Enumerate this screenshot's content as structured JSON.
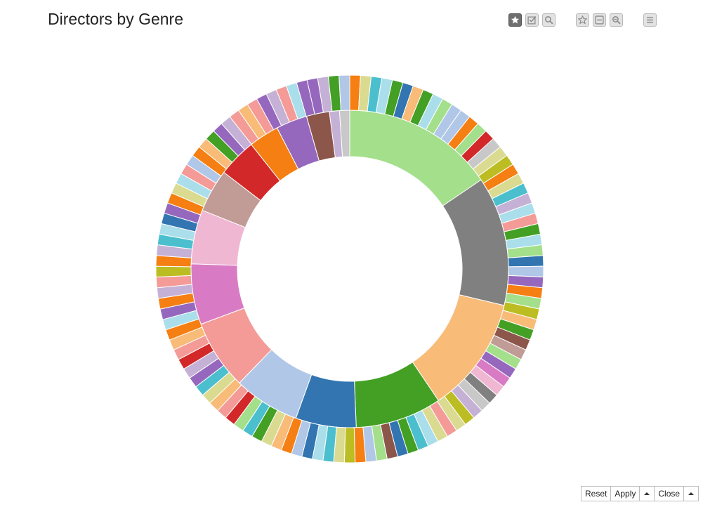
{
  "title": "Directors by Genre",
  "toolbar": [
    {
      "icon": "star-icon",
      "active": true
    },
    {
      "icon": "checkbox-icon",
      "active": false
    },
    {
      "icon": "search-icon",
      "active": false
    },
    {
      "icon": "star-outline-icon",
      "active": false
    },
    {
      "icon": "minus-box-icon",
      "active": false
    },
    {
      "icon": "zoom-out-icon",
      "active": false
    },
    {
      "icon": "menu-icon",
      "active": false
    }
  ],
  "bottom_bar": {
    "reset_label": "Reset",
    "apply_label": "Apply",
    "close_label": "Close"
  },
  "chart_data": {
    "type": "pie",
    "subtype": "sunburst",
    "title": "Directors by Genre",
    "inner_ring": {
      "values": [
        16.6,
        14.1,
        12.7,
        9.4,
        6.6,
        7.2,
        7.6,
        6.6,
        5.9,
        4.7,
        4.2,
        3.3,
        3.4,
        2.5,
        1.1,
        1.1
      ],
      "colors": [
        "#a4df8b",
        "#808080",
        "#f8bb78",
        "#43a024",
        "#3275b1",
        "#b1c7e7",
        "#f49b97",
        "#d97bc4",
        "#f0b7d3",
        "#c19b96",
        "#d32829",
        "#f57f12",
        "#9568be",
        "#8c564b",
        "#c5b1d5",
        "#c8c8c8"
      ]
    },
    "outer_ring": {
      "colors": [
        "#f57f12",
        "#dadb91",
        "#4bbfce",
        "#aadeea",
        "#43a024",
        "#3275b1",
        "#f8bb78",
        "#43a024",
        "#aadeea",
        "#a4df8b",
        "#b1c7e7",
        "#b1c7e7",
        "#f57f12",
        "#a4df8b",
        "#d32829",
        "#c8c8c8",
        "#dadb91",
        "#bcbd22",
        "#f57f12",
        "#dadb91",
        "#4bbfce",
        "#c5b1d5",
        "#aadeea",
        "#f49b97",
        "#43a024",
        "#aadeea",
        "#a4df8b",
        "#3275b1",
        "#b1c7e7",
        "#9568be",
        "#f57f12",
        "#a4df8b",
        "#bcbd22",
        "#f8bb78",
        "#43a024",
        "#8c564b",
        "#c19b96",
        "#a4df8b",
        "#9568be",
        "#d97bc4",
        "#f0b7d3",
        "#808080",
        "#c8c8c8",
        "#c5b1d5",
        "#bcbd22",
        "#dadb91",
        "#f49b97",
        "#dadb91",
        "#aadeea",
        "#4bbfce",
        "#43a024",
        "#3275b1",
        "#8c564b",
        "#a4df8b",
        "#b1c7e7",
        "#f57f12",
        "#bcbd22",
        "#dadb91",
        "#4bbfce",
        "#aadeea",
        "#3275b1",
        "#b1c7e7",
        "#f57f12",
        "#f8bb78",
        "#dadb91",
        "#43a024",
        "#4bbfce",
        "#a4df8b",
        "#d32829",
        "#f49b97",
        "#f8bb78",
        "#dadb91",
        "#4bbfce",
        "#9568be",
        "#c5b1d5",
        "#d32829",
        "#f49b97",
        "#f8bb78",
        "#f57f12",
        "#aadeea",
        "#9568be",
        "#f57f12",
        "#c5b1d5",
        "#f49b97",
        "#bcbd22",
        "#f57f12",
        "#c5b1d5",
        "#4bbfce",
        "#aadeea",
        "#3275b1",
        "#9568be",
        "#f57f12",
        "#dadb91",
        "#aadeea",
        "#f49b97",
        "#b1c7e7",
        "#f57f12",
        "#f8bb78",
        "#43a024",
        "#9568be",
        "#c5b1d5",
        "#f49b97",
        "#f8bb78",
        "#f49b97",
        "#9568be",
        "#c5b1d5",
        "#f49b97",
        "#aadeea",
        "#9568be",
        "#9568be",
        "#c5b1d5",
        "#43a024",
        "#b1c7e7"
      ]
    }
  }
}
